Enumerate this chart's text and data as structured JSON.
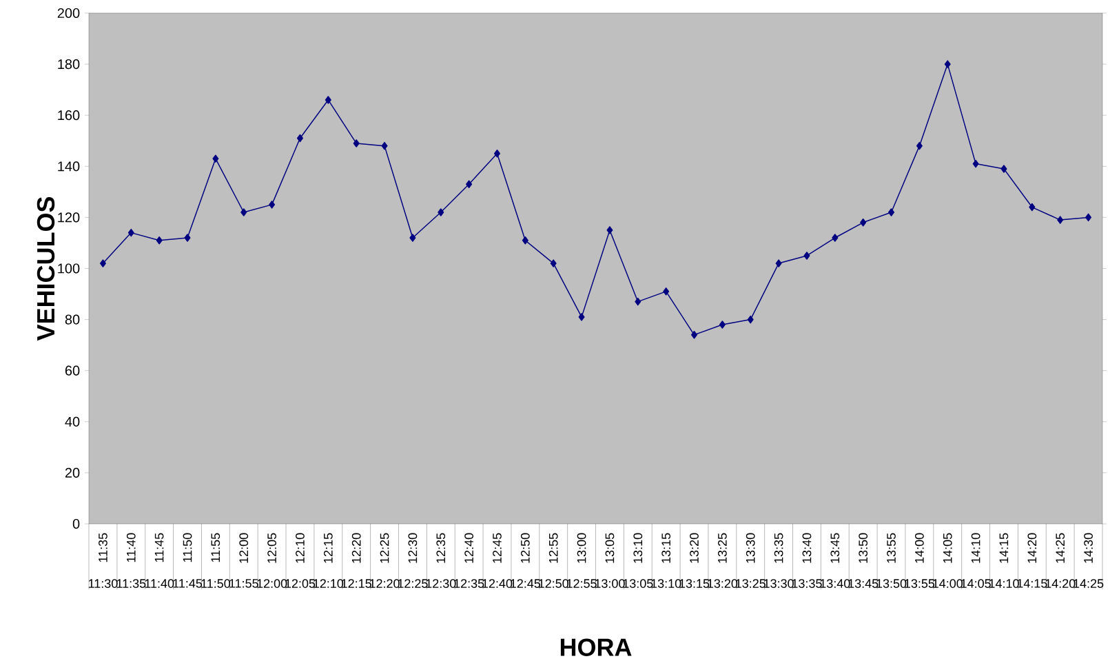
{
  "chart_data": {
    "type": "line",
    "xlabel": "HORA",
    "ylabel": "VEHICULOS",
    "categories": [
      "11:35",
      "11:40",
      "11:45",
      "11:50",
      "11:55",
      "12:00",
      "12:05",
      "12:10",
      "12:15",
      "12:20",
      "12:25",
      "12:30",
      "12:35",
      "12:40",
      "12:45",
      "12:50",
      "12:55",
      "13:00",
      "13:05",
      "13:10",
      "13:15",
      "13:20",
      "13:25",
      "13:30",
      "13:35",
      "13:40",
      "13:45",
      "13:50",
      "13:55",
      "14:00",
      "14:05",
      "14:10",
      "14:15",
      "14:20",
      "14:25",
      "14:30"
    ],
    "annotations": [
      "11:30",
      "11:35",
      "11:40",
      "11:45",
      "11:50",
      "11:55",
      "12:00",
      "12:05",
      "12:10",
      "12:15",
      "12:20",
      "12:25",
      "12:30",
      "12:35",
      "12:40",
      "12:45",
      "12:50",
      "12:55",
      "13:00",
      "13:05",
      "13:10",
      "13:15",
      "13:20",
      "13:25",
      "13:30",
      "13:35",
      "13:40",
      "13:45",
      "13:50",
      "13:55",
      "14:00",
      "14:05",
      "14:10",
      "14:15",
      "14:20",
      "14:25"
    ],
    "series": [
      {
        "color": "#000080",
        "values": [
          102,
          114,
          111,
          112,
          143,
          122,
          125,
          151,
          166,
          149,
          148,
          112,
          122,
          133,
          145,
          111,
          102,
          81,
          115,
          87,
          91,
          74,
          78,
          80,
          102,
          105,
          112,
          118,
          122,
          148,
          180,
          141,
          139,
          124,
          119,
          120
        ]
      }
    ],
    "ylim": [
      0,
      200
    ],
    "yticks": [
      0,
      20,
      40,
      60,
      80,
      100,
      120,
      140,
      160,
      180,
      200
    ],
    "marker": "diamond",
    "line_style": "solid",
    "grid": false
  }
}
